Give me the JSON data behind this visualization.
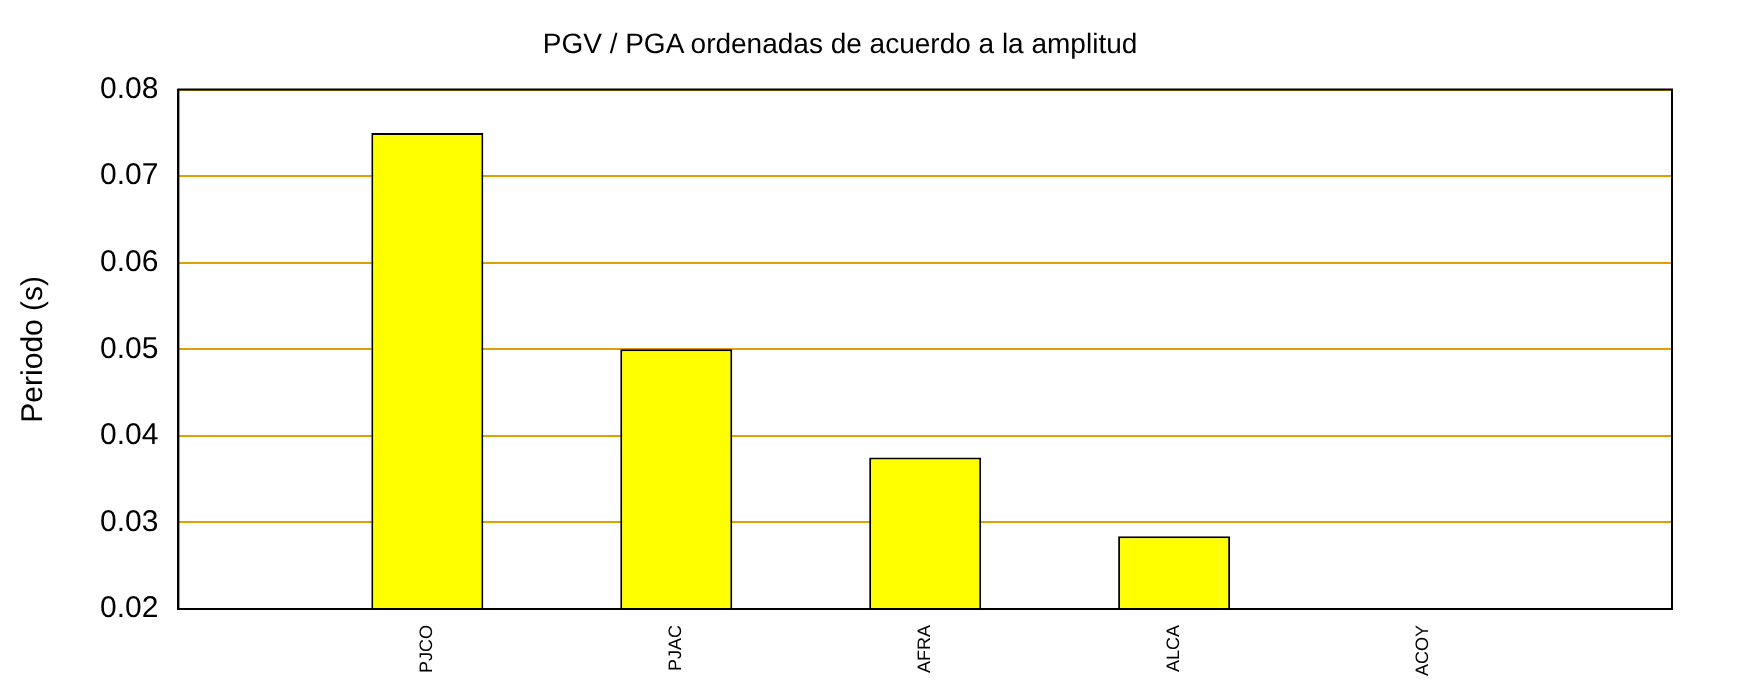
{
  "chart_data": {
    "type": "bar",
    "title": "PGV / PGA ordenadas de acuerdo a la amplitud",
    "ylabel": "Periodo (s)",
    "categories": [
      null,
      "PJCO",
      "PJAC",
      "AFRA",
      "ALCA",
      "ACOY",
      null
    ],
    "values": [
      null,
      0.075,
      0.05,
      0.0375,
      0.0284,
      null,
      null
    ],
    "color": "#ffff00",
    "ylim": [
      0.02,
      0.08
    ],
    "yticks": [
      0.02,
      0.03,
      0.04,
      0.05,
      0.06,
      0.07,
      0.08
    ],
    "grid": "y"
  }
}
